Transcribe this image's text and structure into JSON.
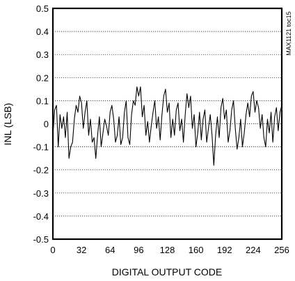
{
  "chart_data": {
    "type": "line",
    "xlabel": "DIGITAL OUTPUT CODE",
    "ylabel": "INL (LSB)",
    "xlim": [
      0,
      256
    ],
    "ylim": [
      -0.5,
      0.5
    ],
    "x_ticks": [
      "0",
      "32",
      "64",
      "96",
      "128",
      "160",
      "192",
      "224",
      "256"
    ],
    "y_ticks": [
      "0.5",
      "0.4",
      "0.3",
      "0.2",
      "0.1",
      "0",
      "-0.1",
      "-0.2",
      "-0.3",
      "-0.4",
      "-0.5"
    ],
    "grid": "horizontal-dotted",
    "annotation": "MAX1121 toc15",
    "series": [
      {
        "x": [
          0,
          2,
          4,
          6,
          8,
          10,
          12,
          14,
          16,
          18,
          20,
          22,
          24,
          26,
          28,
          30,
          32,
          34,
          36,
          38,
          40,
          42,
          44,
          46,
          48,
          50,
          52,
          54,
          56,
          58,
          60,
          62,
          64,
          66,
          68,
          70,
          72,
          74,
          76,
          78,
          80,
          82,
          84,
          86,
          88,
          90,
          92,
          94,
          96,
          98,
          100,
          102,
          104,
          106,
          108,
          110,
          112,
          114,
          116,
          118,
          120,
          122,
          124,
          126,
          128,
          130,
          132,
          134,
          136,
          138,
          140,
          142,
          144,
          146,
          148,
          150,
          152,
          154,
          156,
          158,
          160,
          162,
          164,
          166,
          168,
          170,
          172,
          174,
          176,
          178,
          180,
          182,
          184,
          186,
          188,
          190,
          192,
          194,
          196,
          198,
          200,
          202,
          204,
          206,
          208,
          210,
          212,
          214,
          216,
          218,
          220,
          222,
          224,
          226,
          228,
          230,
          232,
          234,
          236,
          238,
          240,
          242,
          244,
          246,
          248,
          250,
          252,
          254,
          256
        ],
        "values": [
          -0.05,
          0.06,
          0.08,
          -0.1,
          0.04,
          -0.02,
          0.03,
          -0.06,
          0.05,
          -0.15,
          -0.1,
          -0.08,
          0.02,
          0.08,
          0.05,
          0.12,
          0.09,
          -0.02,
          0.05,
          0.1,
          -0.05,
          0.02,
          -0.08,
          -0.06,
          -0.15,
          -0.05,
          0.03,
          -0.1,
          -0.04,
          0.02,
          -0.01,
          -0.05,
          0.05,
          0.08,
          0.02,
          -0.08,
          -0.05,
          0.03,
          -0.09,
          -0.06,
          0.05,
          0.1,
          -0.06,
          -0.09,
          0.04,
          0.1,
          0.08,
          0.16,
          0.12,
          0.16,
          0.03,
          0.08,
          -0.05,
          0.01,
          -0.08,
          -0.01,
          0.05,
          0.1,
          -0.02,
          0.03,
          -0.07,
          0.04,
          0.12,
          0.15,
          0.05,
          0.09,
          -0.06,
          0.02,
          -0.05,
          0.06,
          0.09,
          -0.03,
          0.02,
          -0.08,
          0.04,
          0.13,
          0.07,
          0.12,
          -0.02,
          0.04,
          -0.1,
          -0.04,
          0.05,
          -0.07,
          0.02,
          0.06,
          -0.08,
          -0.02,
          0.04,
          -0.05,
          -0.18,
          -0.05,
          0.03,
          -0.06,
          0.07,
          0.11,
          0.02,
          0.06,
          -0.08,
          -0.03,
          0.06,
          0.1,
          -0.02,
          -0.11,
          -0.06,
          0.02,
          -0.1,
          -0.04,
          0.04,
          0.09,
          0.03,
          0.12,
          0.14,
          0.05,
          0.1,
          0.07,
          -0.02,
          0.04,
          -0.06,
          -0.1,
          0.02,
          -0.04,
          0.05,
          -0.08,
          0.03,
          0.07,
          -0.03,
          0.05,
          0.08
        ]
      }
    ]
  }
}
